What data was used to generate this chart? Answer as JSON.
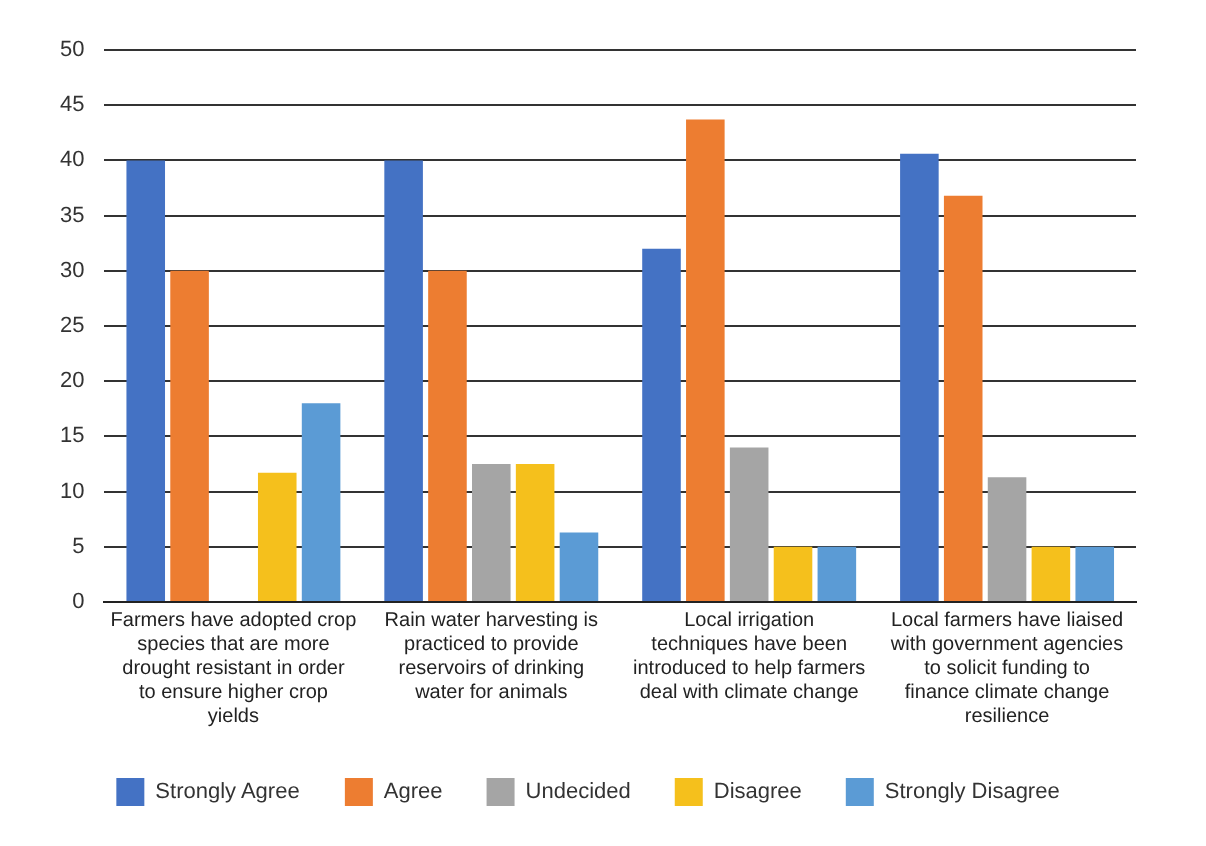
{
  "chart_data": {
    "type": "bar",
    "categories": [
      "Farmers have adopted crop species that are more drought resistant in order to ensure higher crop yields",
      "Rain water harvesting is practiced to provide reservoirs of drinking water for animals",
      "Local irrigation techniques have been introduced to help farmers deal with climate change",
      "Local farmers have liaised with government agencies to solicit funding to finance climate change resilience"
    ],
    "series": [
      {
        "name": "Strongly Agree",
        "color": "#4472c4",
        "values": [
          40,
          40,
          32,
          40.6
        ]
      },
      {
        "name": "Agree",
        "color": "#ed7d31",
        "values": [
          30,
          30,
          43.7,
          36.8
        ]
      },
      {
        "name": "Undecided",
        "color": "#a5a5a5",
        "values": [
          0,
          12.5,
          14,
          11.3
        ]
      },
      {
        "name": "Disagree",
        "color": "#f5c01c",
        "values": [
          11.7,
          12.5,
          5,
          5
        ]
      },
      {
        "name": "Strongly Disagree",
        "color": "#5b9bd5",
        "values": [
          18,
          6.3,
          5,
          5
        ]
      }
    ],
    "ylim": [
      0,
      50
    ],
    "yticks": [
      0,
      5,
      10,
      15,
      20,
      25,
      30,
      35,
      40,
      45,
      50
    ],
    "grid": "y",
    "legend": "bottom"
  }
}
